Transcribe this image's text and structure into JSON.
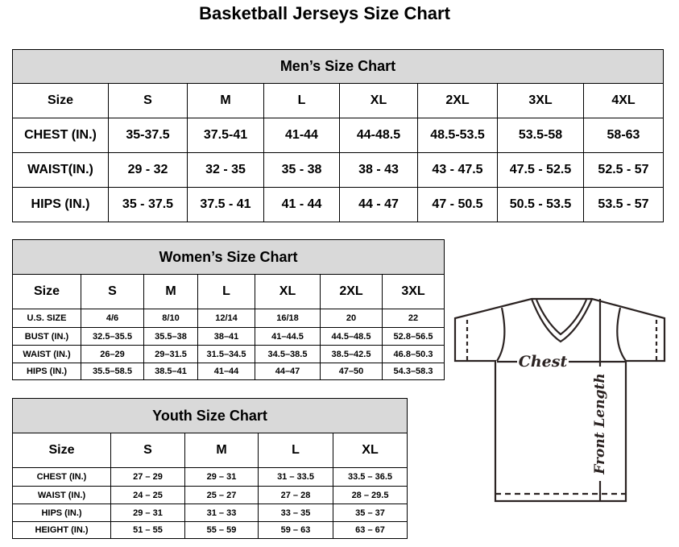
{
  "title": "Basketball Jerseys Size Chart",
  "men": {
    "title": "Men’s Size Chart",
    "rows": [
      [
        "Size",
        "S",
        "M",
        "L",
        "XL",
        "2XL",
        "3XL",
        "4XL"
      ],
      [
        "CHEST (IN.)",
        "35-37.5",
        "37.5-41",
        "41-44",
        "44-48.5",
        "48.5-53.5",
        "53.5-58",
        "58-63"
      ],
      [
        "WAIST(IN.)",
        "29 - 32",
        "32 - 35",
        "35 - 38",
        "38 - 43",
        "43 - 47.5",
        "47.5 - 52.5",
        "52.5 - 57"
      ],
      [
        "HIPS (IN.)",
        "35 - 37.5",
        "37.5 - 41",
        "41 - 44",
        "44 - 47",
        "47 - 50.5",
        "50.5 - 53.5",
        "53.5 - 57"
      ]
    ]
  },
  "women": {
    "title": "Women’s Size Chart",
    "rows": [
      [
        "Size",
        "S",
        "M",
        "L",
        "XL",
        "2XL",
        "3XL"
      ],
      [
        "U.S.  SIZE",
        "4/6",
        "8/10",
        "12/14",
        "16/18",
        "20",
        "22"
      ],
      [
        "BUST  (IN.)",
        "32.5–35.5",
        "35.5–38",
        "38–41",
        "41–44.5",
        "44.5–48.5",
        "52.8–56.5"
      ],
      [
        "WAIST  (IN.)",
        "26–29",
        "29–31.5",
        "31.5–34.5",
        "34.5–38.5",
        "38.5–42.5",
        "46.8–50.3"
      ],
      [
        "HIPS  (IN.)",
        "35.5–58.5",
        "38.5–41",
        "41–44",
        "44–47",
        "47–50",
        "54.3–58.3"
      ]
    ]
  },
  "youth": {
    "title": "Youth Size Chart",
    "rows": [
      [
        "Size",
        "S",
        "M",
        "L",
        "XL"
      ],
      [
        "CHEST  (IN.)",
        "27  –  29",
        "29  –  31",
        "31  –  33.5",
        "33.5  –  36.5"
      ],
      [
        "WAIST  (IN.)",
        "24  –  25",
        "25  –  27",
        "27  –  28",
        "28  –  29.5"
      ],
      [
        "HIPS  (IN.)",
        "29  –  31",
        "31  –  33",
        "33  –  35",
        "35  –  37"
      ],
      [
        "HEIGHT  (IN.)",
        "51  –  55",
        "55  –  59",
        "59  –  63",
        "63  –  67"
      ]
    ]
  },
  "diagram": {
    "chest_label": "Chest",
    "length_label": "Front Length"
  },
  "colors": {
    "header_bg": "#d9d9d9",
    "line": "#2b2322"
  }
}
